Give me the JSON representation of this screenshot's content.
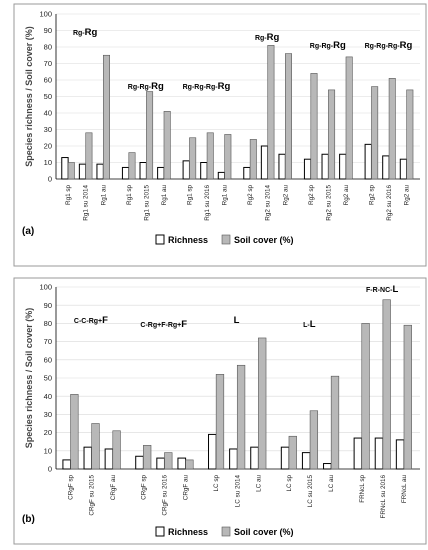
{
  "chart_data": [
    {
      "type": "bar",
      "panel_label": "(a)",
      "ylabel": "Species richness / Soil cover (%)",
      "ylim": [
        0,
        100
      ],
      "yticks": [
        0,
        10,
        20,
        30,
        40,
        50,
        60,
        70,
        80,
        90,
        100
      ],
      "legend": [
        "Richness",
        "Soil cover (%)"
      ],
      "legend_position": "bottom",
      "grid": true,
      "groups": [
        {
          "label_base": "Rg-",
          "label_big": "Rg",
          "categories": [
            "Rg1 sp",
            "Rg1 su 2014",
            "Rg1 au"
          ],
          "richness": [
            13,
            9,
            9
          ],
          "soil_cover": [
            10,
            28,
            75
          ]
        },
        {
          "label_base": "Rg-Rg-",
          "label_big": "Rg",
          "categories": [
            "Rg1 sp",
            "Rg1 su 2015",
            "Rg1 au"
          ],
          "richness": [
            7,
            10,
            7
          ],
          "soil_cover": [
            16,
            53,
            41
          ]
        },
        {
          "label_base": "Rg-Rg-Rg-",
          "label_big": "Rg",
          "categories": [
            "Rg1 sp",
            "Rg1 su 2016",
            "Rg1 au"
          ],
          "richness": [
            11,
            10,
            4
          ],
          "soil_cover": [
            25,
            28,
            27
          ]
        },
        {
          "label_base": "Rg-",
          "label_big": "Rg",
          "categories": [
            "Rg2 sp",
            "Rg2 su 2014",
            "Rg2 au"
          ],
          "richness": [
            7,
            20,
            15
          ],
          "soil_cover": [
            24,
            81,
            76
          ]
        },
        {
          "label_base": "Rg-Rg-",
          "label_big": "Rg",
          "categories": [
            "Rg2 sp",
            "Rg2 su 2015",
            "Rg2 au"
          ],
          "richness": [
            12,
            15,
            15
          ],
          "soil_cover": [
            64,
            54,
            74
          ]
        },
        {
          "label_base": "Rg-Rg-Rg-",
          "label_big": "Rg",
          "categories": [
            "Rg2 sp",
            "Rg2 su 2016",
            "Rg2 au"
          ],
          "richness": [
            21,
            14,
            12
          ],
          "soil_cover": [
            56,
            61,
            54
          ]
        }
      ]
    },
    {
      "type": "bar",
      "panel_label": "(b)",
      "ylabel": "Species richness / Soil cover (%)",
      "ylim": [
        0,
        100
      ],
      "yticks": [
        0,
        10,
        20,
        30,
        40,
        50,
        60,
        70,
        80,
        90,
        100
      ],
      "legend": [
        "Richness",
        "Soil cover (%)"
      ],
      "legend_position": "bottom",
      "grid": true,
      "groups": [
        {
          "label_base": "C-C-Rg+",
          "label_big": "F",
          "categories": [
            "CRgF sp",
            "CRgF su 2015",
            "CRgF au"
          ],
          "richness": [
            5,
            12,
            11
          ],
          "soil_cover": [
            41,
            25,
            21
          ]
        },
        {
          "label_base": "C-Rg+F-Rg+",
          "label_big": "F",
          "categories": [
            "CRgF sp",
            "CRgF su 2016",
            "CRgF au"
          ],
          "richness": [
            7,
            6,
            6
          ],
          "soil_cover": [
            13,
            9,
            5
          ]
        },
        {
          "label_base": "",
          "label_big": "L",
          "categories": [
            "LC sp",
            "LC su 2014",
            "LC au"
          ],
          "richness": [
            19,
            11,
            12
          ],
          "soil_cover": [
            52,
            57,
            72
          ]
        },
        {
          "label_base": "L-",
          "label_big": "L",
          "categories": [
            "LC sp",
            "LC su 2015",
            "LC au"
          ],
          "richness": [
            12,
            9,
            3
          ],
          "soil_cover": [
            18,
            32,
            51
          ]
        },
        {
          "label_base": "F-R-NC-",
          "label_big": "L",
          "categories": [
            "FRNcL sp",
            "FRNcL su 2016",
            "FRNcL au"
          ],
          "richness": [
            17,
            17,
            16
          ],
          "soil_cover": [
            80,
            93,
            79
          ]
        }
      ]
    }
  ]
}
